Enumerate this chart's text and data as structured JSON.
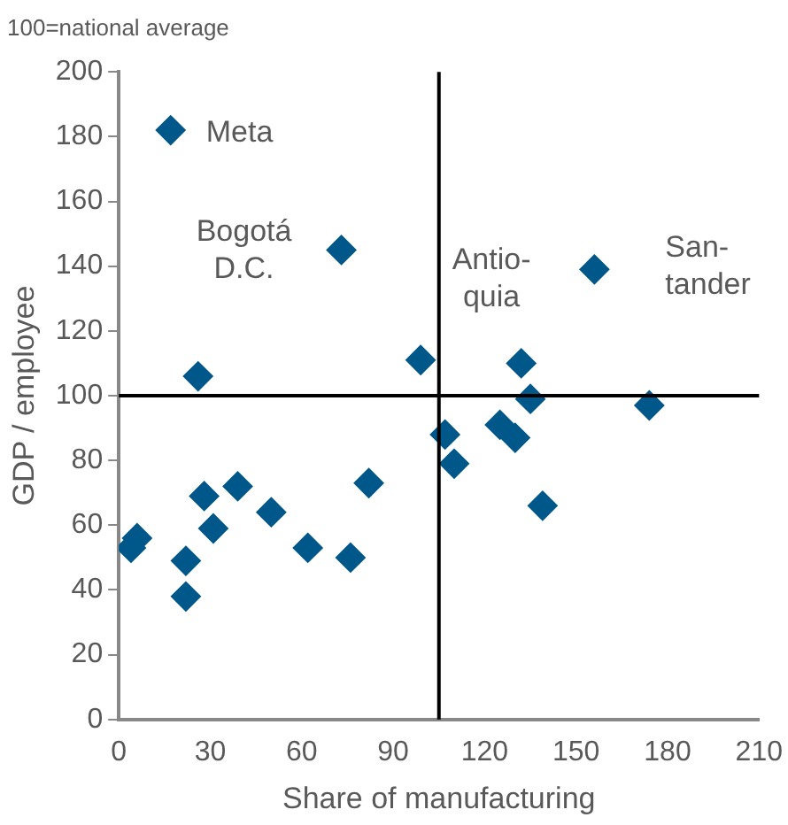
{
  "chart_data": {
    "type": "scatter",
    "subtitle": "100=national average",
    "xlabel": "Share of manufacturing",
    "ylabel": "GDP / employee",
    "x": [
      17,
      73,
      156,
      26,
      99,
      132,
      135,
      174,
      107,
      110,
      125,
      130,
      139,
      6,
      4,
      22,
      22,
      28,
      31,
      39,
      50,
      62,
      76,
      82
    ],
    "values": [
      182,
      145,
      139,
      106,
      111,
      110,
      99,
      97,
      88,
      79,
      91,
      87,
      66,
      56,
      53,
      49,
      38,
      69,
      59,
      72,
      64,
      53,
      50,
      73
    ],
    "color": "#00578a",
    "marker": "diamond",
    "grid": false,
    "legend": false,
    "xlim": [
      0,
      210
    ],
    "xticks": [
      0,
      30,
      60,
      90,
      120,
      150,
      180,
      210
    ],
    "ylim": [
      0,
      200
    ],
    "yticks": [
      0,
      20,
      40,
      60,
      80,
      100,
      120,
      140,
      160,
      180,
      200
    ],
    "ref_lines": [
      {
        "axis": "x",
        "value": 105,
        "color": "#000000"
      },
      {
        "axis": "y",
        "value": 100,
        "color": "#000000"
      }
    ],
    "annotations": [
      {
        "text": "Meta",
        "x": 17,
        "y": 182
      },
      {
        "text": "Bogotá\nD.C.",
        "x": 73,
        "y": 145
      },
      {
        "text": "Antio-\nquia",
        "x": 135,
        "y": 110
      },
      {
        "text": "San-\ntander",
        "x": 156,
        "y": 139
      }
    ]
  }
}
